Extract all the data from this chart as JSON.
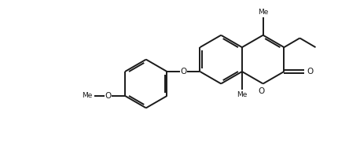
{
  "bg_color": "#ffffff",
  "line_color": "#1a1a1a",
  "line_width": 1.4,
  "figsize": [
    4.58,
    1.92
  ],
  "dpi": 100,
  "xlim": [
    0,
    10
  ],
  "ylim": [
    0,
    4.2
  ]
}
